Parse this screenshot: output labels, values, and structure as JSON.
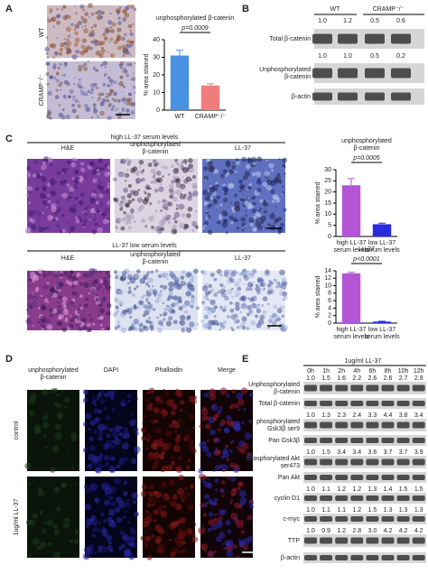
{
  "panel_labels": [
    "A",
    "B",
    "C",
    "D",
    "E"
  ],
  "panel_a": {
    "row_labels": [
      "WT",
      "CRAMP⁻/⁻"
    ]
  },
  "panel_b": {
    "groups": [
      "WT",
      "CRAMP⁻/⁻"
    ],
    "blots": [
      {
        "label": [
          "Total β-catenin"
        ],
        "values": [
          "1.0",
          "1.2",
          "0.5",
          "0.6"
        ]
      },
      {
        "label": [
          "Unphosphorylated",
          "β-catenin"
        ],
        "values": [
          "1.0",
          "1.0",
          "0.5",
          "0.2"
        ]
      },
      {
        "label": [
          "β-actin"
        ]
      }
    ]
  },
  "panel_c": {
    "sections": [
      {
        "title": "high LL-37 serum levels",
        "columns": [
          [
            "H&E"
          ],
          [
            "unphosphorylated",
            "β-catenin"
          ],
          [
            "LL-37"
          ]
        ]
      },
      {
        "title": "LL-37 low serum levels",
        "columns": [
          [
            "H&E"
          ],
          [
            "unphosphorylated",
            "β-catenin"
          ],
          [
            "LL-37"
          ]
        ]
      }
    ]
  },
  "panel_d": {
    "columns": [
      [
        "unphosphorylated",
        "β-catenin"
      ],
      [
        "DAPI"
      ],
      [
        "Phalloidin"
      ],
      [
        "Merge"
      ]
    ],
    "rows": [
      "control",
      "1ug/ml LL-37"
    ]
  },
  "panel_e": {
    "treatment": "1ug/ml LL-37",
    "times": [
      "0h",
      "1h",
      "2h",
      "4h",
      "6h",
      "8h",
      "10h",
      "12h"
    ],
    "blots": [
      {
        "label": [
          "Unphosphorylated",
          "β-catenin"
        ],
        "values": [
          "1.0",
          "1.5",
          "1.6",
          "2.2",
          "2.6",
          "2.6",
          "2.7",
          "2.9"
        ]
      },
      {
        "label": [
          "Total β-catenin"
        ]
      },
      {
        "label": [
          "phosphorylated",
          "Gsk3β ser9"
        ],
        "values": [
          "1.0",
          "1.3",
          "2.3",
          "2.4",
          "3.3",
          "4.4",
          "3.8",
          "3.4"
        ]
      },
      {
        "label": [
          "Pan Gsk3β"
        ]
      },
      {
        "label": [
          "phosphorylated Akt",
          "ser473"
        ],
        "values": [
          "1.0",
          "1.5",
          "3.4",
          "3.4",
          "3.6",
          "3.7",
          "3.7",
          "3.9"
        ]
      },
      {
        "label": [
          "Pan Akt"
        ]
      },
      {
        "label": [
          "cyclin D1"
        ],
        "values": [
          "1.0",
          "1.1",
          "1.2",
          "1.2",
          "1.3",
          "1.4",
          "1.5",
          "1.5"
        ]
      },
      {
        "label": [
          "c-myc"
        ],
        "values": [
          "1.0",
          "1.1",
          "1.1",
          "1.2",
          "1.5",
          "1.3",
          "1.3",
          "1.3"
        ]
      },
      {
        "label": [
          "TTP"
        ],
        "values": [
          "1.0",
          "0.9",
          "1.2",
          "2.8",
          "3.0",
          "4.2",
          "4.2",
          "4.2"
        ]
      },
      {
        "label": [
          "β-actin"
        ]
      }
    ]
  },
  "chart_data": [
    {
      "type": "bar",
      "title": [
        "unphosphorylated β-catenin"
      ],
      "ylabel": "% area stained",
      "categories": [
        [
          "WT"
        ],
        [
          "CRAMP⁻/⁻"
        ]
      ],
      "values": [
        31,
        14
      ],
      "errors": [
        3,
        1
      ],
      "colors": [
        "#4a90e2",
        "#f07c7c"
      ],
      "annotation": "p=0.0009",
      "ylim": [
        0,
        40
      ],
      "yticks": [
        0,
        10,
        20,
        30,
        40
      ]
    },
    {
      "type": "bar",
      "title": [
        "unphosphorylated",
        "β-catenin"
      ],
      "ylabel": "% area stained",
      "categories": [
        [
          "high LL-37",
          "serum levels"
        ],
        [
          "low LL-37",
          "serum levels"
        ]
      ],
      "values": [
        23,
        5.5
      ],
      "errors": [
        3,
        0.5
      ],
      "colors": [
        "#b455d6",
        "#2a2ae0"
      ],
      "annotation": "p=0.0005",
      "ylim": [
        0,
        30
      ],
      "yticks": [
        0,
        5,
        10,
        15,
        20,
        25,
        30
      ]
    },
    {
      "type": "bar",
      "title": [
        "LL-37"
      ],
      "ylabel": "% area stained",
      "categories": [
        [
          "high LL-37",
          "serum levels"
        ],
        [
          "low LL-37",
          "serum levels"
        ]
      ],
      "values": [
        13.3,
        0.4
      ],
      "errors": [
        0.3,
        0.1
      ],
      "colors": [
        "#b455d6",
        "#2a2ae0"
      ],
      "annotation": "p<0.0001",
      "ylim": [
        0,
        14
      ],
      "yticks": [
        0,
        2,
        4,
        6,
        8,
        10,
        12,
        14
      ]
    }
  ]
}
